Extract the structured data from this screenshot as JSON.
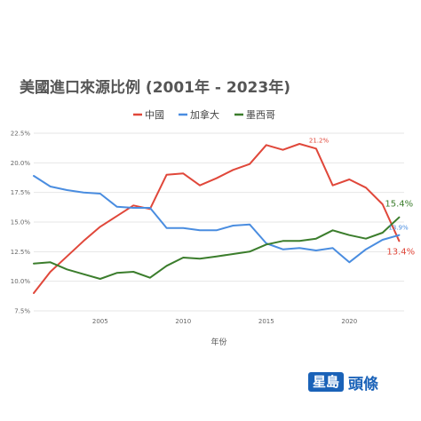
{
  "colors": {
    "china": "#e0473a",
    "canada": "#4a8de0",
    "mexico": "#3b7d2c",
    "grid": "#e6e6e6",
    "brand": "#1a62b8"
  },
  "logo": {
    "box_text": "星島",
    "text": "頭條"
  },
  "chart_data": {
    "type": "line",
    "title": "美國進口來源比例 (2001年 - 2023年)",
    "xlabel": "年份",
    "ylabel": "",
    "x": [
      2001,
      2002,
      2003,
      2004,
      2005,
      2006,
      2007,
      2008,
      2009,
      2010,
      2011,
      2012,
      2013,
      2014,
      2015,
      2016,
      2017,
      2018,
      2019,
      2020,
      2021,
      2022,
      2023
    ],
    "xticks": [
      2005,
      2010,
      2015,
      2020
    ],
    "xtick_labels": [
      "2005",
      "2010",
      "2015",
      "2020"
    ],
    "yticks": [
      7.5,
      10,
      12.5,
      15,
      17.5,
      20,
      22.5
    ],
    "ytick_labels": [
      "7.5%",
      "10.0%",
      "12.5%",
      "15.0%",
      "17.5%",
      "20.0%",
      "22.5%"
    ],
    "ylim": [
      7.5,
      22.5
    ],
    "xlim": [
      2001,
      2023.3
    ],
    "grid": "horizontal",
    "legend_position": "top-right",
    "series": [
      {
        "name": "中國",
        "color_key": "china",
        "values": [
          9.0,
          10.8,
          12.1,
          13.4,
          14.6,
          15.5,
          16.4,
          16.1,
          19.0,
          19.1,
          18.1,
          18.7,
          19.4,
          19.9,
          21.5,
          21.1,
          21.6,
          21.2,
          18.1,
          18.6,
          17.9,
          16.5,
          13.4
        ]
      },
      {
        "name": "加拿大",
        "color_key": "canada",
        "values": [
          18.9,
          18.0,
          17.7,
          17.5,
          17.4,
          16.3,
          16.2,
          16.2,
          14.5,
          14.5,
          14.3,
          14.3,
          14.7,
          14.8,
          13.2,
          12.7,
          12.8,
          12.6,
          12.8,
          11.6,
          12.7,
          13.5,
          13.9
        ]
      },
      {
        "name": "墨西哥",
        "color_key": "mexico",
        "values": [
          11.5,
          11.6,
          11.0,
          10.6,
          10.2,
          10.7,
          10.8,
          10.3,
          11.3,
          12.0,
          11.9,
          12.1,
          12.3,
          12.5,
          13.1,
          13.4,
          13.4,
          13.6,
          14.3,
          13.9,
          13.6,
          14.1,
          15.4
        ]
      }
    ],
    "annotations": [
      {
        "text": "21.2%",
        "series": 0,
        "index": 17,
        "dx": -8,
        "dy": -7,
        "size": 7,
        "anchor": "start"
      },
      {
        "text": "13.9%",
        "series": 1,
        "index": 22,
        "dx": -12,
        "dy": -6,
        "size": 7,
        "anchor": "start"
      },
      {
        "text": "15.4%",
        "series": 2,
        "index": 22,
        "dx": -16,
        "dy": -12,
        "size": 10,
        "anchor": "start"
      },
      {
        "text": "13.4%",
        "series": 0,
        "index": 22,
        "dx": -14,
        "dy": 15,
        "size": 10,
        "anchor": "start"
      }
    ]
  }
}
